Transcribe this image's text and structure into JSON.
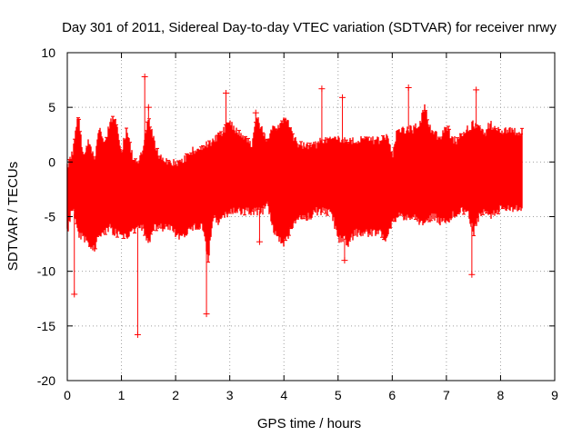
{
  "chart_data": {
    "type": "scatter",
    "title": "Day 301 of 2011, Sidereal Day-to-day VTEC variation (SDTVAR) for receiver nrwy",
    "xlabel": "GPS time / hours",
    "ylabel": "SDTVAR / TECUs",
    "xlim": [
      0,
      9
    ],
    "ylim": [
      -20,
      10
    ],
    "x_ticks": [
      0,
      1,
      2,
      3,
      4,
      5,
      6,
      7,
      8,
      9
    ],
    "y_ticks": [
      10,
      5,
      0,
      -5,
      -10,
      -15,
      -20
    ],
    "grid": true,
    "color": "#ff0000",
    "series": [
      {
        "name": "SDTVAR nrwy",
        "description": "dense red '+' point cloud with error bars from 0 to 8.4 h",
        "envelope_x": [
          0.0,
          0.1,
          0.2,
          0.3,
          0.4,
          0.5,
          0.6,
          0.7,
          0.8,
          0.9,
          1.0,
          1.1,
          1.2,
          1.3,
          1.4,
          1.5,
          1.6,
          1.7,
          1.8,
          1.9,
          2.0,
          2.1,
          2.2,
          2.3,
          2.4,
          2.5,
          2.6,
          2.7,
          2.8,
          2.9,
          3.0,
          3.1,
          3.2,
          3.3,
          3.4,
          3.5,
          3.6,
          3.7,
          3.8,
          3.9,
          4.0,
          4.1,
          4.2,
          4.3,
          4.4,
          4.5,
          4.6,
          4.7,
          4.8,
          4.9,
          5.0,
          5.1,
          5.2,
          5.3,
          5.4,
          5.5,
          5.6,
          5.7,
          5.8,
          5.9,
          6.0,
          6.1,
          6.2,
          6.3,
          6.4,
          6.5,
          6.6,
          6.7,
          6.8,
          6.9,
          7.0,
          7.1,
          7.2,
          7.3,
          7.4,
          7.5,
          7.6,
          7.7,
          7.8,
          7.9,
          8.0,
          8.1,
          8.2,
          8.3,
          8.4
        ],
        "envelope_upper": [
          -0.5,
          1.0,
          4.5,
          0.5,
          2.0,
          0.0,
          3.5,
          1.5,
          4.0,
          3.5,
          1.0,
          3.0,
          0.5,
          0.0,
          1.0,
          4.0,
          2.0,
          0.5,
          0.0,
          0.0,
          0.0,
          0.0,
          0.5,
          1.0,
          1.0,
          1.5,
          1.5,
          2.0,
          2.5,
          3.0,
          3.5,
          3.0,
          2.5,
          2.0,
          1.5,
          4.0,
          3.0,
          2.0,
          3.5,
          3.0,
          4.0,
          3.5,
          2.0,
          1.5,
          1.5,
          1.5,
          1.5,
          2.0,
          2.0,
          2.0,
          2.0,
          2.0,
          2.0,
          2.0,
          2.0,
          2.0,
          2.0,
          2.0,
          2.0,
          2.5,
          0.5,
          3.0,
          3.0,
          3.0,
          3.0,
          3.5,
          5.0,
          3.0,
          2.5,
          2.0,
          3.5,
          2.0,
          2.0,
          2.5,
          3.0,
          3.5,
          3.0,
          2.5,
          3.5,
          3.0,
          2.8,
          2.8,
          2.8,
          2.8,
          2.8
        ],
        "envelope_lower": [
          -6.5,
          -4.0,
          -6.5,
          -7.0,
          -7.5,
          -8.0,
          -6.5,
          -6.5,
          -6.0,
          -6.5,
          -6.5,
          -7.0,
          -6.5,
          -6.0,
          -6.0,
          -7.5,
          -6.0,
          -6.0,
          -6.0,
          -6.0,
          -6.5,
          -7.0,
          -6.5,
          -6.0,
          -6.0,
          -6.0,
          -9.0,
          -5.0,
          -5.5,
          -5.0,
          -4.5,
          -4.5,
          -4.5,
          -4.5,
          -4.5,
          -4.5,
          -4.5,
          -4.0,
          -6.0,
          -7.0,
          -7.5,
          -6.5,
          -5.5,
          -5.0,
          -5.0,
          -5.0,
          -4.5,
          -4.5,
          -4.5,
          -5.0,
          -7.0,
          -7.0,
          -7.5,
          -6.5,
          -6.5,
          -6.5,
          -6.5,
          -6.5,
          -6.5,
          -7.0,
          -5.5,
          -5.0,
          -5.0,
          -5.0,
          -5.0,
          -5.5,
          -5.5,
          -5.0,
          -5.0,
          -5.5,
          -5.5,
          -5.0,
          -4.5,
          -4.5,
          -4.5,
          -6.5,
          -5.0,
          -4.5,
          -5.0,
          -4.5,
          -4.3,
          -4.2,
          -4.2,
          -4.2,
          -4.2
        ]
      }
    ],
    "notable_points": [
      {
        "x": 0.13,
        "y": -12.1
      },
      {
        "x": 1.3,
        "y": -15.8
      },
      {
        "x": 1.43,
        "y": 7.8
      },
      {
        "x": 1.5,
        "y": 5.0
      },
      {
        "x": 2.57,
        "y": -13.9
      },
      {
        "x": 2.93,
        "y": 6.3
      },
      {
        "x": 3.48,
        "y": 4.5
      },
      {
        "x": 3.55,
        "y": -7.3
      },
      {
        "x": 4.7,
        "y": 6.7
      },
      {
        "x": 5.08,
        "y": 5.9
      },
      {
        "x": 5.12,
        "y": -9.0
      },
      {
        "x": 6.3,
        "y": 6.8
      },
      {
        "x": 7.47,
        "y": -10.3
      },
      {
        "x": 7.55,
        "y": 6.6
      }
    ]
  }
}
